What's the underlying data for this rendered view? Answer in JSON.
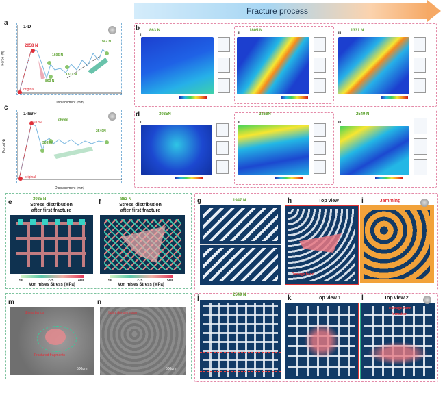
{
  "header": {
    "fracture_process": "Fracture process"
  },
  "labels": {
    "a": "a",
    "b": "b",
    "c": "c",
    "d": "d",
    "e": "e",
    "f": "f",
    "g": "g",
    "h": "h",
    "i": "i",
    "j": "j",
    "k": "k",
    "l": "l",
    "m": "m",
    "n": "n"
  },
  "plot_a": {
    "title": "1-D",
    "xlabel": "Displacement (mm)",
    "ylabel": "Force (N)",
    "points": {
      "original": "original",
      "p2058": "2058 N",
      "p1605": "1605 N",
      "p863": "863 N",
      "p1331": "1331 N",
      "p1947": "1947 N"
    },
    "xticks": [
      "0.0",
      "0.2",
      "0.4",
      "0.6",
      "0.8",
      "1.0",
      "1.2"
    ]
  },
  "plot_c": {
    "title": "1-IWP",
    "xlabel": "Displacement (mm)",
    "ylabel": "Force(N)",
    "points": {
      "original": "original",
      "p3932": "3932N",
      "p3035": "3035N",
      "p2466": "2466N",
      "p2549": "2549N"
    },
    "xticks": [
      "0.0",
      "0.2",
      "0.4",
      "0.6",
      "0.8",
      "1.0",
      "1.2"
    ]
  },
  "panel_b": {
    "i": "i",
    "ii": "ii",
    "iii": "iii",
    "f1": "863 N",
    "f2": "1805 N",
    "f3": "1331 N"
  },
  "panel_d": {
    "i": "i",
    "ii": "ii",
    "iii": "iii",
    "f1": "3035N",
    "f2": "2466N",
    "f3": "2549 N"
  },
  "panel_e": {
    "force": "3035 N",
    "title1": "Stress distribution",
    "title2": "after first fracture",
    "cmin": "50",
    "cmid": "225",
    "cmax": "400",
    "cbar_label": "Von mises Stress (MPa)"
  },
  "panel_f": {
    "force": "863 N",
    "title1": "Stress distribution",
    "title2": "after first fracture",
    "cmin": "50",
    "cmid": "275",
    "cmax": "500",
    "cbar_label": "Von mises Stress (MPa)"
  },
  "panel_g": {
    "force": "1947 N"
  },
  "panel_h": {
    "title": "Top view",
    "damage": "Damage band"
  },
  "panel_i": {
    "title": "Jamming"
  },
  "panel_j": {
    "force": "2549 N"
  },
  "panel_k": {
    "title": "Top view 1"
  },
  "panel_l": {
    "title": "Top view 2",
    "damage1": "Damage band",
    "damage2": "formation"
  },
  "panel_m": {
    "shear": "Shear bands",
    "fracture": "Fractured fragments",
    "scale": "500μm"
  },
  "panel_n": {
    "dense": "Highly dense region",
    "scale": "500μm"
  },
  "colors": {
    "accent_green": "#5aa02c",
    "red": "#e0303a",
    "arrow_start": "#cfe9fb",
    "arrow_end": "#f6b37a"
  }
}
